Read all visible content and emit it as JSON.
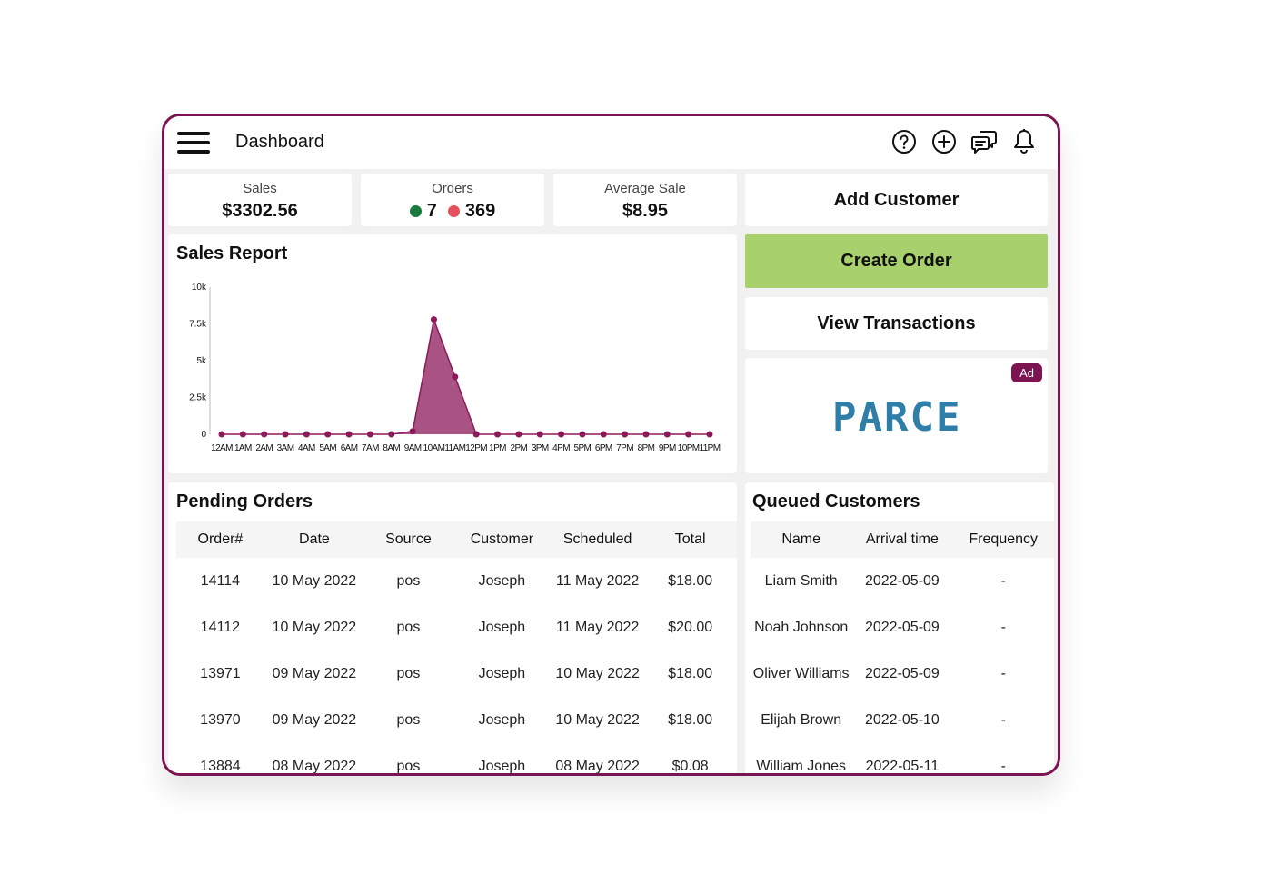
{
  "header": {
    "title": "Dashboard",
    "icons": [
      "help-icon",
      "add-icon",
      "chat-icon",
      "bell-icon"
    ]
  },
  "stats": {
    "sales": {
      "label": "Sales",
      "value": "$3302.56"
    },
    "orders": {
      "label": "Orders",
      "green_count": "7",
      "red_count": "369",
      "green_color": "#1a7a3e",
      "red_color": "#e5505c"
    },
    "average_sale": {
      "label": "Average Sale",
      "value": "$8.95"
    }
  },
  "actions": {
    "add_customer": "Add Customer",
    "create_order": "Create Order",
    "view_transactions": "View Transactions",
    "create_order_color": "#a8d16e"
  },
  "ad": {
    "badge": "Ad",
    "brand": "PARCE"
  },
  "sales_report": {
    "title": "Sales Report"
  },
  "chart_data": {
    "type": "area",
    "x": [
      "12AM",
      "1AM",
      "2AM",
      "3AM",
      "4AM",
      "5AM",
      "6AM",
      "7AM",
      "8AM",
      "9AM",
      "10AM",
      "11AM",
      "12PM",
      "1PM",
      "2PM",
      "3PM",
      "4PM",
      "5PM",
      "6PM",
      "7PM",
      "8PM",
      "9PM",
      "10PM",
      "11PM"
    ],
    "values": [
      0,
      0,
      0,
      0,
      0,
      0,
      0,
      0,
      0,
      200,
      7800,
      3900,
      0,
      0,
      0,
      0,
      0,
      0,
      0,
      0,
      0,
      0,
      0,
      0
    ],
    "yticks": [
      "0",
      "2.5k",
      "5k",
      "7.5k",
      "10k"
    ],
    "ylim": [
      0,
      10000
    ],
    "color": "#8b1a5a",
    "legend": "none"
  },
  "pending_orders": {
    "title": "Pending Orders",
    "columns": [
      "Order#",
      "Date",
      "Source",
      "Customer",
      "Scheduled",
      "Total"
    ],
    "rows": [
      [
        "14114",
        "10 May 2022",
        "pos",
        "Joseph",
        "11 May 2022",
        "$18.00"
      ],
      [
        "14112",
        "10 May 2022",
        "pos",
        "Joseph",
        "11 May 2022",
        "$20.00"
      ],
      [
        "13971",
        "09 May 2022",
        "pos",
        "Joseph",
        "10 May 2022",
        "$18.00"
      ],
      [
        "13970",
        "09 May 2022",
        "pos",
        "Joseph",
        "10 May 2022",
        "$18.00"
      ],
      [
        "13884",
        "08 May 2022",
        "pos",
        "Joseph",
        "08 May 2022",
        "$0.08"
      ]
    ]
  },
  "queued_customers": {
    "title": "Queued Customers",
    "columns": [
      "Name",
      "Arrival time",
      "Frequency"
    ],
    "rows": [
      [
        "Liam Smith",
        "2022-05-09",
        "-"
      ],
      [
        "Noah Johnson",
        "2022-05-09",
        "-"
      ],
      [
        "Oliver Williams",
        "2022-05-09",
        "-"
      ],
      [
        "Elijah Brown",
        "2022-05-10",
        "-"
      ],
      [
        "William Jones",
        "2022-05-11",
        "-"
      ]
    ]
  }
}
